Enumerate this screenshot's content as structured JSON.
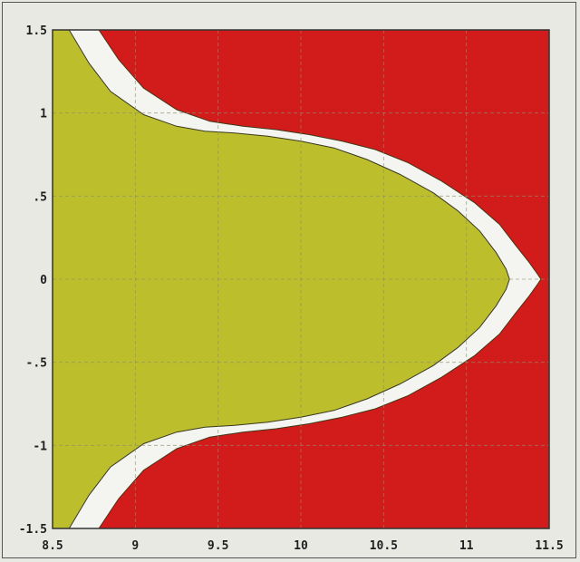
{
  "chart_data": {
    "type": "area",
    "title": "",
    "xlabel": "",
    "ylabel": "",
    "xlim": [
      8.5,
      11.5
    ],
    "ylim": [
      -1.5,
      1.5
    ],
    "x_ticks": [
      {
        "value": 8.5,
        "label": "8.5"
      },
      {
        "value": 9,
        "label": "9"
      },
      {
        "value": 9.5,
        "label": "9.5"
      },
      {
        "value": 10,
        "label": "10"
      },
      {
        "value": 10.5,
        "label": "10.5"
      },
      {
        "value": 11,
        "label": "11"
      },
      {
        "value": 11.5,
        "label": "11.5"
      }
    ],
    "y_ticks": [
      {
        "value": 1.5,
        "label": "1.5"
      },
      {
        "value": 1,
        "label": "1"
      },
      {
        "value": 0.5,
        "label": ".5"
      },
      {
        "value": 0,
        "label": "0"
      },
      {
        "value": -0.5,
        "label": "-.5"
      },
      {
        "value": -1,
        "label": "-1"
      },
      {
        "value": -1.5,
        "label": "-1.5"
      }
    ],
    "grid": true,
    "colors": {
      "outer_region": "#d21c1c",
      "band_region": "#f4f4f0",
      "inner_region": "#bcbe2c",
      "gridline": "#8f8f6a",
      "boundary": "#3a3a1a"
    },
    "series": [
      {
        "role": "inner_boundary",
        "x": [
          8.6,
          8.72,
          8.85,
          9.05,
          9.25,
          9.42,
          9.6,
          9.8,
          10.0,
          10.2,
          10.4,
          10.6,
          10.8,
          10.95,
          11.08,
          11.18,
          11.24,
          11.26
        ],
        "y": [
          1.5,
          1.3,
          1.13,
          0.99,
          0.92,
          0.89,
          0.88,
          0.86,
          0.83,
          0.79,
          0.72,
          0.63,
          0.52,
          0.41,
          0.29,
          0.16,
          0.06,
          0.0
        ]
      },
      {
        "role": "outer_boundary",
        "x": [
          8.78,
          8.9,
          9.05,
          9.25,
          9.45,
          9.65,
          9.85,
          10.05,
          10.25,
          10.45,
          10.65,
          10.85,
          11.05,
          11.2,
          11.3,
          11.38,
          11.43,
          11.45
        ],
        "y": [
          1.5,
          1.32,
          1.15,
          1.02,
          0.95,
          0.92,
          0.9,
          0.87,
          0.83,
          0.78,
          0.7,
          0.59,
          0.46,
          0.33,
          0.2,
          0.1,
          0.03,
          0.0
        ]
      }
    ]
  }
}
